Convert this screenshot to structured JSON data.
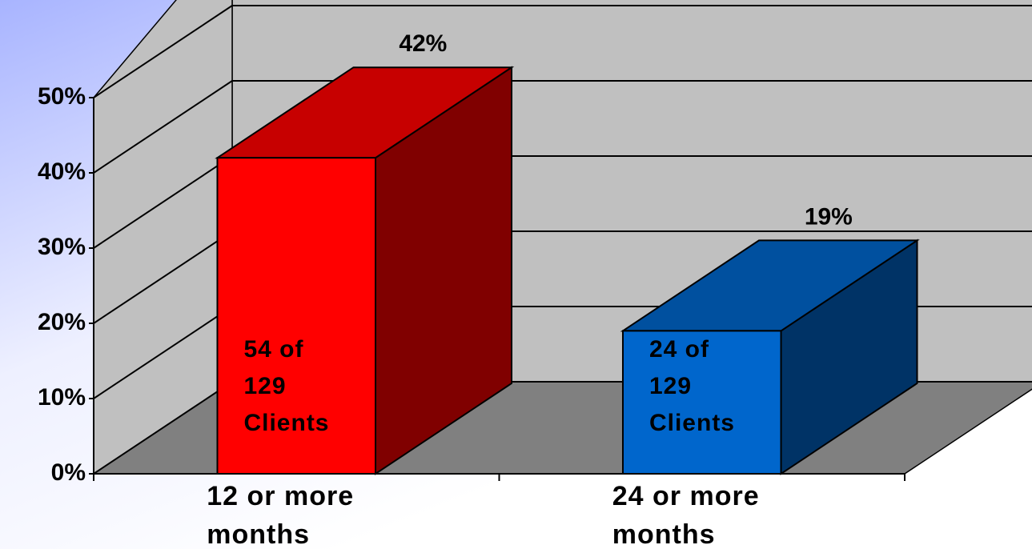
{
  "chart_data": {
    "type": "bar3d",
    "categories": [
      "12 or more months",
      "24 or more months"
    ],
    "values": [
      42,
      19
    ],
    "value_labels": [
      "42%",
      "19%"
    ],
    "annotations": [
      "54 of 129 Clients",
      "24 of 129 Clients"
    ],
    "colors": [
      "#ff0000",
      "#0066cc"
    ],
    "ylim": [
      0,
      50
    ],
    "yticks": [
      {
        "value": 0,
        "label": "0%"
      },
      {
        "value": 10,
        "label": "10%"
      },
      {
        "value": 20,
        "label": "20%"
      },
      {
        "value": 30,
        "label": "30%"
      },
      {
        "value": 40,
        "label": "40%"
      },
      {
        "value": 50,
        "label": "50%"
      }
    ],
    "grid": true
  }
}
